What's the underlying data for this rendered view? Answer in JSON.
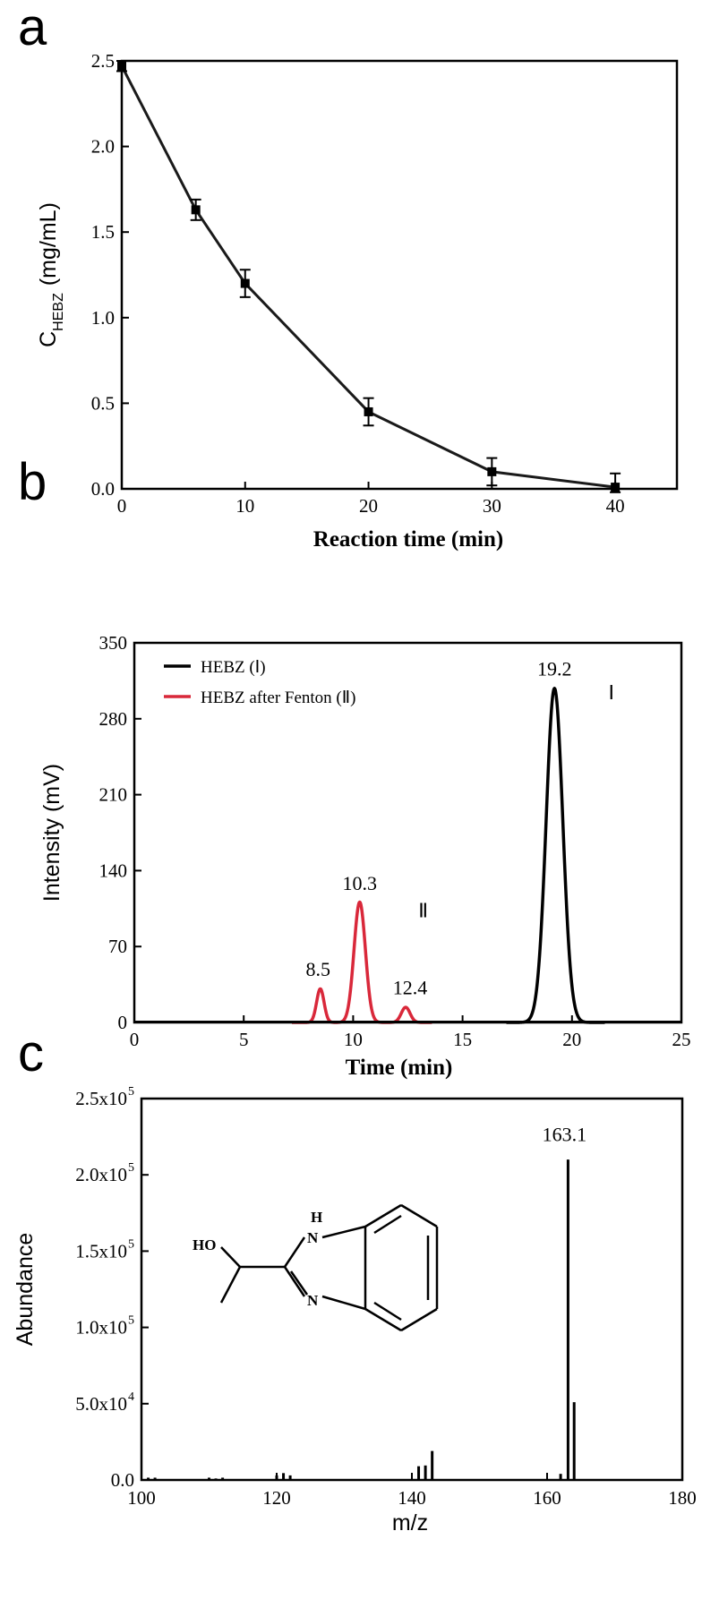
{
  "figure": {
    "panels": [
      {
        "letter": "a"
      },
      {
        "letter": "b"
      },
      {
        "letter": "c"
      }
    ]
  },
  "chart_data": [
    {
      "type": "line",
      "panel": "a",
      "title": "",
      "xlabel": "Reaction time (min)",
      "ylabel": "C",
      "ylabel_subscript": "HEBZ",
      "ylabel_unit": "(mg/mL)",
      "xlim": [
        0,
        45
      ],
      "ylim": [
        0,
        2.5
      ],
      "xticks": [
        0,
        10,
        20,
        30,
        40
      ],
      "yticks": [
        0.0,
        0.5,
        1.0,
        1.5,
        2.0,
        2.5
      ],
      "ytick_labels": [
        "0.0",
        "0.5",
        "1.0",
        "1.5",
        "2.0",
        "2.5"
      ],
      "series": [
        {
          "x": [
            0,
            6,
            10,
            20,
            30,
            40
          ],
          "y": [
            2.47,
            1.63,
            1.2,
            0.45,
            0.1,
            0.01
          ],
          "error": [
            0.03,
            0.06,
            0.08,
            0.08,
            0.08,
            0.08
          ],
          "color": "#1a1a1a"
        }
      ],
      "grid": false
    },
    {
      "type": "line",
      "panel": "b",
      "title": "",
      "xlabel": "Time (min)",
      "ylabel": "Intensity (mV)",
      "xlim": [
        0,
        25
      ],
      "ylim": [
        0,
        350
      ],
      "xticks": [
        0,
        5,
        10,
        15,
        20,
        25
      ],
      "yticks": [
        0,
        70,
        140,
        210,
        280,
        350
      ],
      "legend_position": "top-left",
      "series": [
        {
          "name": "HEBZ (Ⅰ)",
          "color": "#000000",
          "peaks": [
            {
              "x": 19.2,
              "height": 308,
              "width": 0.38
            }
          ]
        },
        {
          "name": "HEBZ after Fenton (Ⅱ)",
          "color": "#d9283a",
          "peaks": [
            {
              "x": 8.5,
              "height": 31,
              "width": 0.17
            },
            {
              "x": 10.3,
              "height": 111,
              "width": 0.26
            },
            {
              "x": 12.4,
              "height": 14,
              "width": 0.2
            }
          ]
        }
      ],
      "annotations": [
        {
          "text": "19.2",
          "x": 19.2,
          "y": 320
        },
        {
          "text": "Ⅰ",
          "x": 21.8,
          "y": 298
        },
        {
          "text": "10.3",
          "x": 10.3,
          "y": 122
        },
        {
          "text": "Ⅱ",
          "x": 13.2,
          "y": 97
        },
        {
          "text": "8.5",
          "x": 8.4,
          "y": 43
        },
        {
          "text": "12.4",
          "x": 12.6,
          "y": 26
        }
      ],
      "grid": false
    },
    {
      "type": "bar",
      "panel": "c",
      "title": "",
      "xlabel": "m/z",
      "ylabel": "Abundance",
      "xlim": [
        100,
        180
      ],
      "ylim": [
        0,
        250000
      ],
      "xticks": [
        100,
        120,
        140,
        160,
        180
      ],
      "yticks": [
        0,
        50000,
        100000,
        150000,
        200000,
        250000
      ],
      "ytick_labels": [
        {
          "mantissa": "0.0",
          "exp": ""
        },
        {
          "mantissa": "5.0x10",
          "exp": "4"
        },
        {
          "mantissa": "1.0x10",
          "exp": "5"
        },
        {
          "mantissa": "1.5x10",
          "exp": "5"
        },
        {
          "mantissa": "2.0x10",
          "exp": "5"
        },
        {
          "mantissa": "2.5x10",
          "exp": "5"
        }
      ],
      "x": [
        101,
        102,
        110,
        111,
        112,
        120,
        121,
        122,
        141,
        142,
        143,
        162,
        163.1,
        164
      ],
      "values": [
        1500,
        1500,
        1500,
        1000,
        1500,
        3000,
        4500,
        3000,
        9000,
        9500,
        19000,
        4000,
        210000,
        51000
      ],
      "annotations": [
        {
          "text": "163.1",
          "x": 163.1,
          "y": 222000
        }
      ],
      "structure_labels": {
        "hydroxyl": "HO",
        "nh": "H",
        "n1": "N",
        "n2": "N"
      },
      "grid": false
    }
  ]
}
